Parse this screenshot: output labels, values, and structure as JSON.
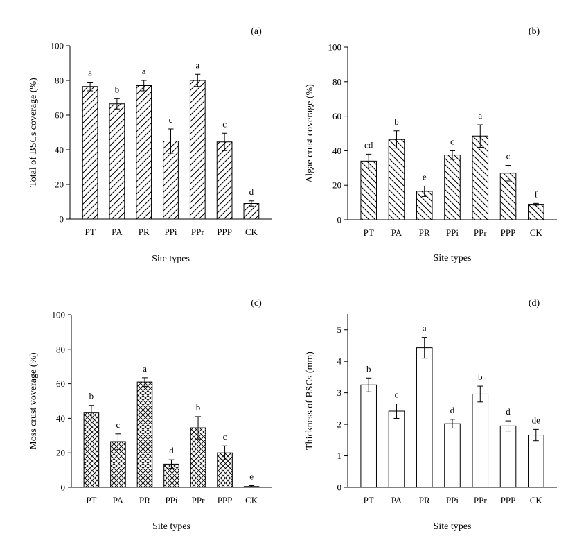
{
  "chart_data": [
    {
      "panel": "(a)",
      "type": "bar",
      "categories": [
        "PT",
        "PA",
        "PR",
        "PPi",
        "PPr",
        "PPP",
        "CK"
      ],
      "values": [
        76.5,
        66.5,
        77,
        45,
        80,
        44.5,
        9
      ],
      "errors": [
        2.5,
        3,
        3,
        7,
        3.5,
        5,
        1.5
      ],
      "letters": [
        "a",
        "b",
        "a",
        "c",
        "a",
        "c",
        "d"
      ],
      "xlabel": "Site types",
      "ylabel": "Total of BSCs coverage (%)",
      "ylim": [
        0,
        100
      ],
      "yticks": [
        "0",
        "20",
        "40",
        "60",
        "80",
        "100"
      ],
      "hatch": "diag-up"
    },
    {
      "panel": "(b)",
      "type": "bar",
      "categories": [
        "PT",
        "PA",
        "PR",
        "PPi",
        "PPr",
        "PPP",
        "CK"
      ],
      "values": [
        34,
        46.5,
        16.5,
        37.5,
        48.5,
        27,
        9
      ],
      "errors": [
        4,
        5,
        3,
        2.5,
        6.5,
        4.5,
        0.5
      ],
      "letters": [
        "cd",
        "b",
        "e",
        "c",
        "a",
        "c",
        "f"
      ],
      "xlabel": "Site types",
      "ylabel": "Algae crust coverage (%)",
      "ylim": [
        0,
        100
      ],
      "yticks": [
        "0",
        "20",
        "40",
        "60",
        "80",
        "100"
      ],
      "hatch": "diag-down"
    },
    {
      "panel": "(c)",
      "type": "bar",
      "categories": [
        "PT",
        "PA",
        "PR",
        "PPi",
        "PPr",
        "PPP",
        "CK"
      ],
      "values": [
        43.5,
        26.5,
        61,
        13.5,
        34.5,
        20,
        0.5
      ],
      "errors": [
        4,
        4.5,
        2.5,
        2.5,
        6.5,
        4,
        0.5
      ],
      "letters": [
        "b",
        "c",
        "a",
        "d",
        "b",
        "c",
        "e"
      ],
      "xlabel": "Site types",
      "ylabel": "Moss crust voverage (%)",
      "ylim": [
        0,
        100
      ],
      "yticks": [
        "0",
        "20",
        "40",
        "60",
        "80",
        "100"
      ],
      "hatch": "cross"
    },
    {
      "panel": "(d)",
      "type": "bar",
      "categories": [
        "PT",
        "PA",
        "PR",
        "PPi",
        "PPr",
        "PPP",
        "CK"
      ],
      "values": [
        3.25,
        2.42,
        4.43,
        2.02,
        2.96,
        1.95,
        1.66
      ],
      "errors": [
        0.22,
        0.23,
        0.33,
        0.14,
        0.25,
        0.16,
        0.18
      ],
      "letters": [
        "b",
        "c",
        "a",
        "d",
        "b",
        "d",
        "de"
      ],
      "xlabel": "Site types",
      "ylabel": "Thickness of BSCs (mm)",
      "ylim": [
        0,
        5.5
      ],
      "yticks": [
        "0",
        "1",
        "2",
        "3",
        "4",
        "5"
      ],
      "hatch": "none"
    }
  ]
}
